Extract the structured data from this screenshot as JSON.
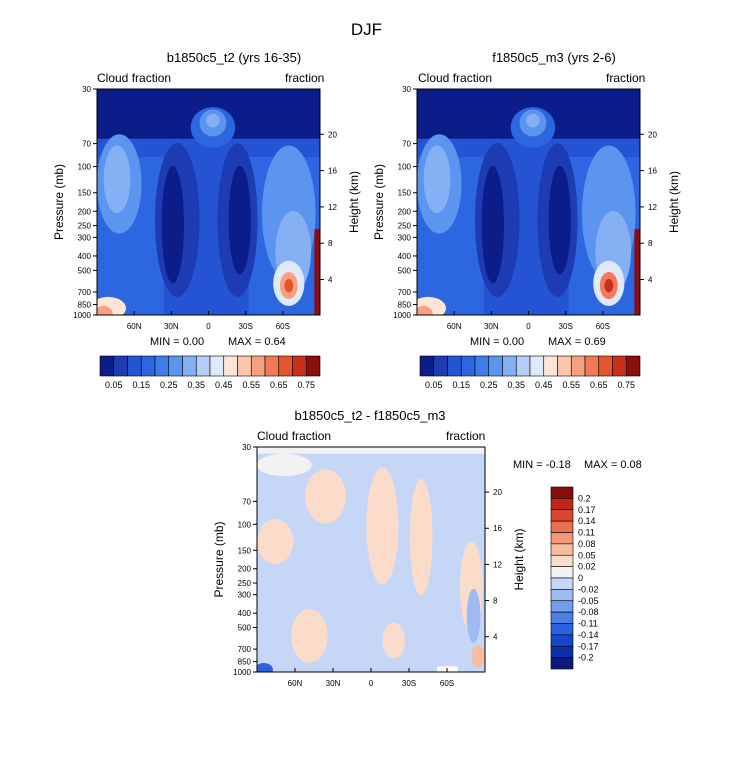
{
  "figure_title": "DJF",
  "colors": {
    "fill_scale": [
      "#0c1d8a",
      "#1d3bb3",
      "#2453d3",
      "#2c66e0",
      "#3f7cea",
      "#5c95ef",
      "#86b0f4",
      "#b4cef8",
      "#deeafc",
      "#fde5d8",
      "#fbc6ad",
      "#f8a07f",
      "#f27a56",
      "#e5532f",
      "#c7301c",
      "#8b0d0d"
    ],
    "diff_scale": [
      "#081d7a",
      "#0c2ea8",
      "#1446cd",
      "#2a63dd",
      "#4a80e6",
      "#729ced",
      "#9dbaf3",
      "#c5d6f7",
      "#f2f2f2",
      "#fbdccb",
      "#f8bda0",
      "#f29877",
      "#e96f4f",
      "#d9472f",
      "#bd2618",
      "#8a0b0b"
    ]
  },
  "chart_data": [
    {
      "type": "heatmap",
      "title": "b1850c5_t2 (yrs 16-35)",
      "left_label": "Cloud fraction",
      "right_label": "fraction",
      "xlabel": "",
      "ylabel": "Pressure (mb)",
      "y2label": "Height (km)",
      "x_ticks": [
        "60N",
        "30N",
        "0",
        "30S",
        "60S"
      ],
      "x_tick_values": [
        60,
        30,
        0,
        -30,
        -60
      ],
      "xlim": [
        90,
        -90
      ],
      "y_ticks": [
        30,
        70,
        100,
        150,
        200,
        250,
        300,
        400,
        500,
        700,
        850,
        1000
      ],
      "ylim": [
        30,
        1000
      ],
      "y2_ticks": [
        20,
        16,
        12,
        8,
        4
      ],
      "min_label": "MIN =   0.00",
      "max_label": "MAX =  0.64",
      "peak_value": 0.64,
      "colorbar_labels": [
        "0.05",
        "0.15",
        "0.25",
        "0.35",
        "0.45",
        "0.55",
        "0.65",
        "0.75"
      ],
      "colorbar_levels": [
        0.05,
        0.1,
        0.15,
        0.2,
        0.25,
        0.3,
        0.35,
        0.4,
        0.45,
        0.5,
        0.55,
        0.6,
        0.65,
        0.7,
        0.75
      ]
    },
    {
      "type": "heatmap",
      "title": "f1850c5_m3 (yrs 2-6)",
      "left_label": "Cloud fraction",
      "right_label": "fraction",
      "xlabel": "",
      "ylabel": "Pressure (mb)",
      "y2label": "Height (km)",
      "x_ticks": [
        "60N",
        "30N",
        "0",
        "30S",
        "60S"
      ],
      "x_tick_values": [
        60,
        30,
        0,
        -30,
        -60
      ],
      "xlim": [
        90,
        -90
      ],
      "y_ticks": [
        30,
        70,
        100,
        150,
        200,
        250,
        300,
        400,
        500,
        700,
        850,
        1000
      ],
      "ylim": [
        30,
        1000
      ],
      "y2_ticks": [
        20,
        16,
        12,
        8,
        4
      ],
      "min_label": "MIN =   0.00",
      "max_label": "MAX =  0.69",
      "peak_value": 0.69,
      "colorbar_labels": [
        "0.05",
        "0.15",
        "0.25",
        "0.35",
        "0.45",
        "0.55",
        "0.65",
        "0.75"
      ],
      "colorbar_levels": [
        0.05,
        0.1,
        0.15,
        0.2,
        0.25,
        0.3,
        0.35,
        0.4,
        0.45,
        0.5,
        0.55,
        0.6,
        0.65,
        0.7,
        0.75
      ]
    },
    {
      "type": "heatmap",
      "title": "b1850c5_t2 - f1850c5_m3",
      "left_label": "Cloud fraction",
      "right_label": "fraction",
      "xlabel": "",
      "ylabel": "Pressure (mb)",
      "y2label": "Height (km)",
      "x_ticks": [
        "60N",
        "30N",
        "0",
        "30S",
        "60S"
      ],
      "x_tick_values": [
        60,
        30,
        0,
        -30,
        -60
      ],
      "xlim": [
        90,
        -90
      ],
      "y_ticks": [
        30,
        70,
        100,
        150,
        200,
        250,
        300,
        400,
        500,
        700,
        850,
        1000
      ],
      "ylim": [
        30,
        1000
      ],
      "y2_ticks": [
        20,
        16,
        12,
        8,
        4
      ],
      "min_label": "MIN =  -0.18",
      "max_label": "MAX =  0.08",
      "colorbar_labels": [
        "0.2",
        "0.17",
        "0.14",
        "0.11",
        "0.08",
        "0.05",
        "0.02",
        "0",
        "-0.02",
        "-0.05",
        "-0.08",
        "-0.11",
        "-0.14",
        "-0.17",
        "-0.2"
      ],
      "colorbar_levels": [
        0.2,
        0.17,
        0.14,
        0.11,
        0.08,
        0.05,
        0.02,
        0,
        -0.02,
        -0.05,
        -0.08,
        -0.11,
        -0.14,
        -0.17,
        -0.2
      ]
    }
  ]
}
